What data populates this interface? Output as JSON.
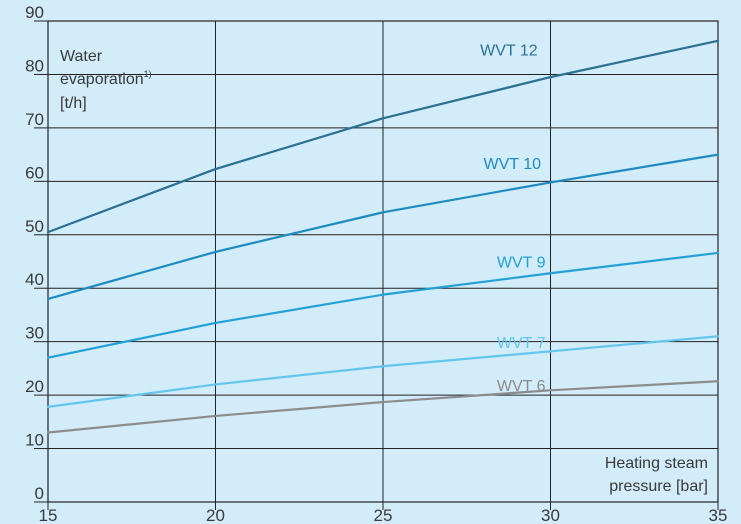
{
  "chart_data": {
    "type": "line",
    "y_title_lines": [
      "Water",
      "evaporation",
      "[t/h]"
    ],
    "y_title_superscript": "1)",
    "x_title_lines": [
      "Heating steam",
      "pressure [bar]"
    ],
    "x": [
      15,
      20,
      25,
      30,
      35
    ],
    "xlim": [
      15,
      35
    ],
    "ylim": [
      0,
      90
    ],
    "x_ticks": [
      "15",
      "20",
      "25",
      "30",
      "35"
    ],
    "y_ticks": [
      "0",
      "10",
      "20",
      "30",
      "40",
      "50",
      "60",
      "70",
      "80",
      "90"
    ],
    "grid": true,
    "series": [
      {
        "name": "WVT 12",
        "values": [
          50.5,
          62.3,
          71.8,
          79.5,
          86.3
        ],
        "color": "#2a7193",
        "label_x": 27.9,
        "label_y": 83.5
      },
      {
        "name": "WVT 10",
        "values": [
          38.0,
          46.8,
          54.2,
          59.8,
          65.0
        ],
        "color": "#1e8cc0",
        "label_x": 28.0,
        "label_y": 62.3
      },
      {
        "name": "WVT 9",
        "values": [
          27.0,
          33.5,
          38.8,
          42.8,
          46.6
        ],
        "color": "#23a1d6",
        "label_x": 28.4,
        "label_y": 43.9
      },
      {
        "name": "WVT 7",
        "values": [
          17.8,
          22.0,
          25.4,
          28.2,
          31.0
        ],
        "color": "#63c6ee",
        "label_x": 28.4,
        "label_y": 28.8
      },
      {
        "name": "WVT 6",
        "values": [
          13.0,
          16.1,
          18.7,
          20.9,
          22.6
        ],
        "color": "#8c8c8c",
        "label_x": 28.4,
        "label_y": 20.8
      }
    ]
  }
}
